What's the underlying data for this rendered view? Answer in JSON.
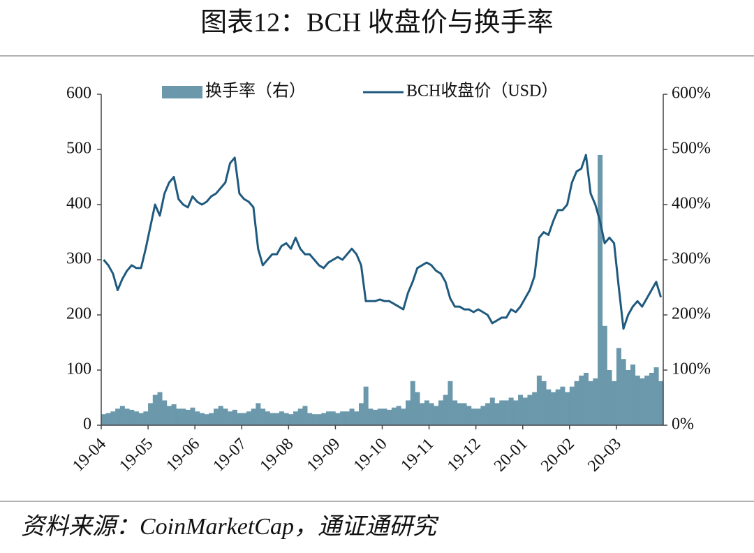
{
  "chart_data": {
    "type": "bar+line",
    "title": "图表12：BCH 收盘价与换手率",
    "source": "资料来源：CoinMarketCap，通证通研究",
    "categories": [
      "19-04",
      null,
      null,
      null,
      null,
      null,
      null,
      null,
      null,
      null,
      "19-05",
      null,
      null,
      null,
      null,
      null,
      null,
      null,
      null,
      null,
      "19-06",
      null,
      null,
      null,
      null,
      null,
      null,
      null,
      null,
      null,
      "19-07",
      null,
      null,
      null,
      null,
      null,
      null,
      null,
      null,
      null,
      "19-08",
      null,
      null,
      null,
      null,
      null,
      null,
      null,
      null,
      null,
      "19-09",
      null,
      null,
      null,
      null,
      null,
      null,
      null,
      null,
      null,
      "19-10",
      null,
      null,
      null,
      null,
      null,
      null,
      null,
      null,
      null,
      "19-11",
      null,
      null,
      null,
      null,
      null,
      null,
      null,
      null,
      null,
      "19-12",
      null,
      null,
      null,
      null,
      null,
      null,
      null,
      null,
      null,
      "20-01",
      null,
      null,
      null,
      null,
      null,
      null,
      null,
      null,
      null,
      "20-02",
      null,
      null,
      null,
      null,
      null,
      null,
      null,
      null,
      null,
      "20-03",
      null,
      null,
      null,
      null,
      null,
      null,
      null,
      null,
      null
    ],
    "series": [
      {
        "name": "换手率（右）",
        "color": "#6b98ab",
        "axis": "y2",
        "type": "bar",
        "values": [
          20,
          22,
          25,
          30,
          35,
          30,
          28,
          25,
          22,
          25,
          40,
          55,
          60,
          45,
          35,
          38,
          30,
          30,
          28,
          32,
          25,
          22,
          20,
          22,
          30,
          35,
          30,
          25,
          28,
          22,
          22,
          25,
          30,
          40,
          30,
          25,
          22,
          22,
          25,
          22,
          20,
          25,
          30,
          35,
          22,
          20,
          20,
          22,
          25,
          25,
          22,
          25,
          25,
          30,
          25,
          40,
          70,
          30,
          28,
          30,
          30,
          28,
          32,
          35,
          30,
          45,
          80,
          60,
          40,
          45,
          40,
          35,
          45,
          55,
          80,
          45,
          40,
          40,
          35,
          30,
          30,
          35,
          40,
          50,
          40,
          45,
          45,
          50,
          45,
          55,
          50,
          55,
          60,
          90,
          80,
          65,
          60,
          65,
          70,
          60,
          70,
          80,
          90,
          95,
          80,
          85,
          490,
          180,
          100,
          80,
          140,
          120,
          100,
          110,
          90,
          85,
          90,
          95,
          105,
          80
        ]
      },
      {
        "name": "BCH收盘价（USD）",
        "color": "#1f5a7e",
        "axis": "y",
        "type": "line",
        "values": [
          300,
          290,
          275,
          245,
          265,
          280,
          290,
          285,
          285,
          320,
          360,
          400,
          380,
          420,
          440,
          450,
          410,
          400,
          395,
          415,
          405,
          400,
          405,
          415,
          420,
          430,
          440,
          475,
          485,
          420,
          410,
          405,
          395,
          320,
          290,
          300,
          310,
          310,
          325,
          330,
          320,
          340,
          320,
          310,
          310,
          300,
          290,
          285,
          295,
          300,
          305,
          300,
          310,
          320,
          310,
          290,
          225,
          225,
          225,
          228,
          225,
          225,
          220,
          215,
          210,
          240,
          260,
          285,
          290,
          295,
          290,
          280,
          275,
          260,
          230,
          215,
          215,
          210,
          210,
          205,
          210,
          205,
          200,
          185,
          190,
          195,
          195,
          210,
          205,
          215,
          230,
          245,
          270,
          340,
          350,
          345,
          370,
          390,
          390,
          400,
          440,
          460,
          465,
          490,
          420,
          400,
          370,
          330,
          340,
          330,
          250,
          175,
          200,
          215,
          225,
          215,
          230,
          245,
          260,
          232
        ]
      }
    ],
    "ylim": [
      0,
      600
    ],
    "yticks": [
      0,
      100,
      200,
      300,
      400,
      500,
      600
    ],
    "y2lim": [
      0,
      600
    ],
    "y2ticks": [
      {
        "value": 0,
        "label": "0%"
      },
      {
        "value": 100,
        "label": "100%"
      },
      {
        "value": 200,
        "label": "200%"
      },
      {
        "value": 300,
        "label": "300%"
      },
      {
        "value": 400,
        "label": "400%"
      },
      {
        "value": 500,
        "label": "500%"
      },
      {
        "value": 600,
        "label": "600%"
      }
    ],
    "legend": "top"
  }
}
